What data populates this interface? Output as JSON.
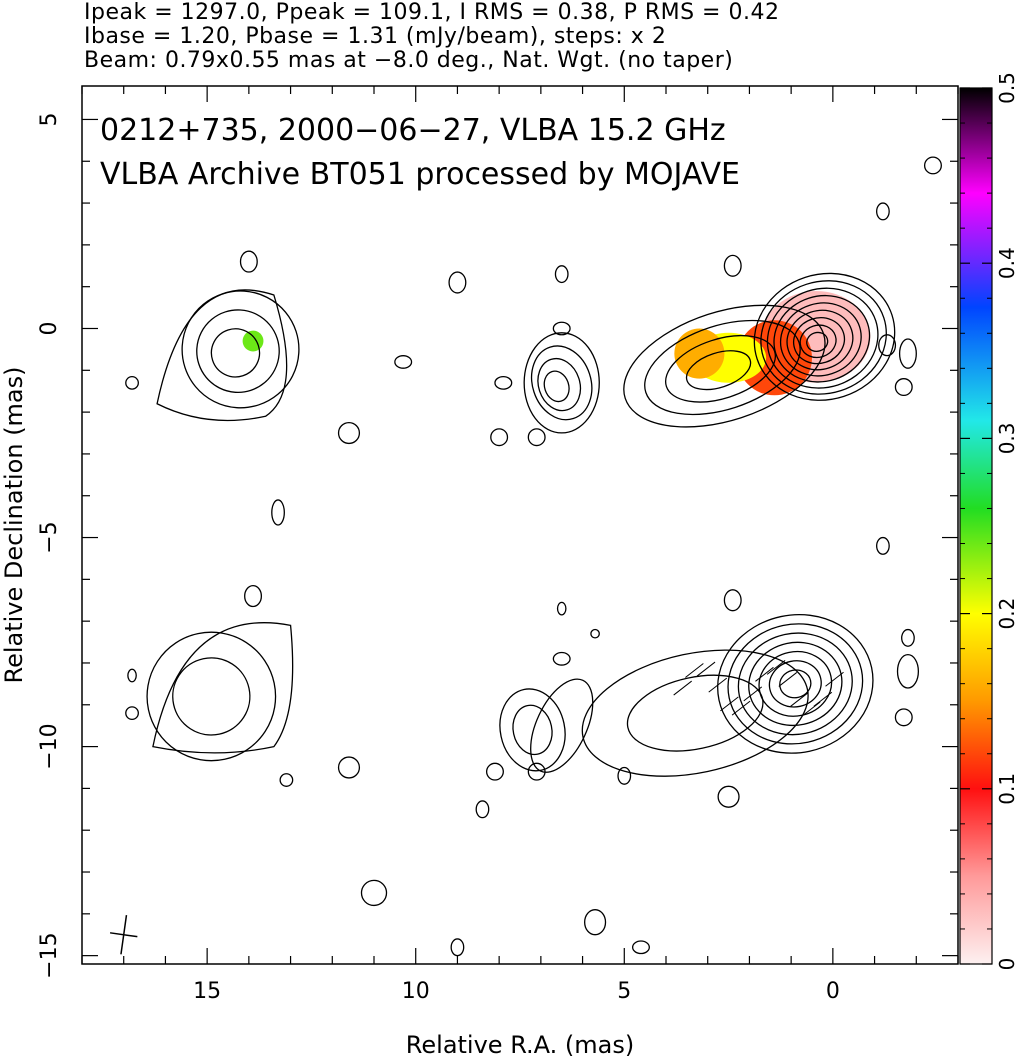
{
  "header": {
    "line1": "Ipeak = 1297.0, Ppeak = 109.1, I RMS = 0.38, P RMS = 0.42",
    "line2": "Ibase = 1.20, Pbase = 1.31 (mJy/beam), steps: x 2",
    "line3": "Beam: 0.79x0.55 mas at −8.0 deg., Nat. Wgt. (no taper)"
  },
  "chart_data": {
    "type": "heatmap",
    "title_line1": "0212+735, 2000−06−27, VLBA 15.2 GHz",
    "title_line2": "VLBA Archive BT051 processed by MOJAVE",
    "xlabel": "Relative R.A. (mas)",
    "ylabel": "Relative Declination (mas)",
    "xlim": [
      18,
      -3
    ],
    "ylim": [
      -15.2,
      5.8
    ],
    "xticks": [
      15,
      10,
      5,
      0
    ],
    "yticks": [
      5,
      0,
      -5,
      -10,
      -15
    ],
    "x_tick_labels": [
      "15",
      "10",
      "5",
      "0"
    ],
    "y_tick_labels": [
      "5",
      "0",
      "−5",
      "−10",
      "−15"
    ],
    "colorbar": {
      "range": [
        0,
        0.5
      ],
      "ticks": [
        0,
        0.1,
        0.2,
        0.3,
        0.4,
        0.5
      ],
      "tick_labels": [
        "0",
        "0.1",
        "0.2",
        "0.3",
        "0.4",
        "0.5"
      ],
      "colors": [
        "#fdf0f0",
        "#ff2020",
        "#ff9900",
        "#ffff00",
        "#22dd22",
        "#22e8e8",
        "#0044ff",
        "#ff00ff",
        "#000000"
      ]
    },
    "core": {
      "x": 0.2,
      "y": -0.2
    },
    "components": [
      {
        "x": 0.2,
        "y": -0.2,
        "rx": 1.7,
        "ry": 1.5,
        "contours": 9
      },
      {
        "x": 2.6,
        "y": -0.9,
        "rx": 2.5,
        "ry": 1.3,
        "contours": 4
      },
      {
        "x": 6.5,
        "y": -1.3,
        "rx": 0.7,
        "ry": 0.9,
        "contours": 3
      },
      {
        "x": 14.2,
        "y": -0.5,
        "rx": 1.4,
        "ry": 1.4,
        "contours": 3
      }
    ],
    "polarization_patches": [
      {
        "x": 0.4,
        "y": -0.2,
        "rx": 1.3,
        "ry": 1.1,
        "value": 0.03
      },
      {
        "x": 1.4,
        "y": -0.7,
        "rx": 0.9,
        "ry": 0.9,
        "value": 0.12
      },
      {
        "x": 2.5,
        "y": -0.7,
        "rx": 0.9,
        "ry": 0.6,
        "value": 0.2
      },
      {
        "x": 3.2,
        "y": -0.6,
        "rx": 0.6,
        "ry": 0.6,
        "value": 0.16
      },
      {
        "x": 13.9,
        "y": -0.3,
        "rx": 0.25,
        "ry": 0.25,
        "value": 0.24
      }
    ],
    "beam": {
      "major_mas": 0.79,
      "minor_mas": 0.55,
      "pa_deg": -8.0
    }
  }
}
